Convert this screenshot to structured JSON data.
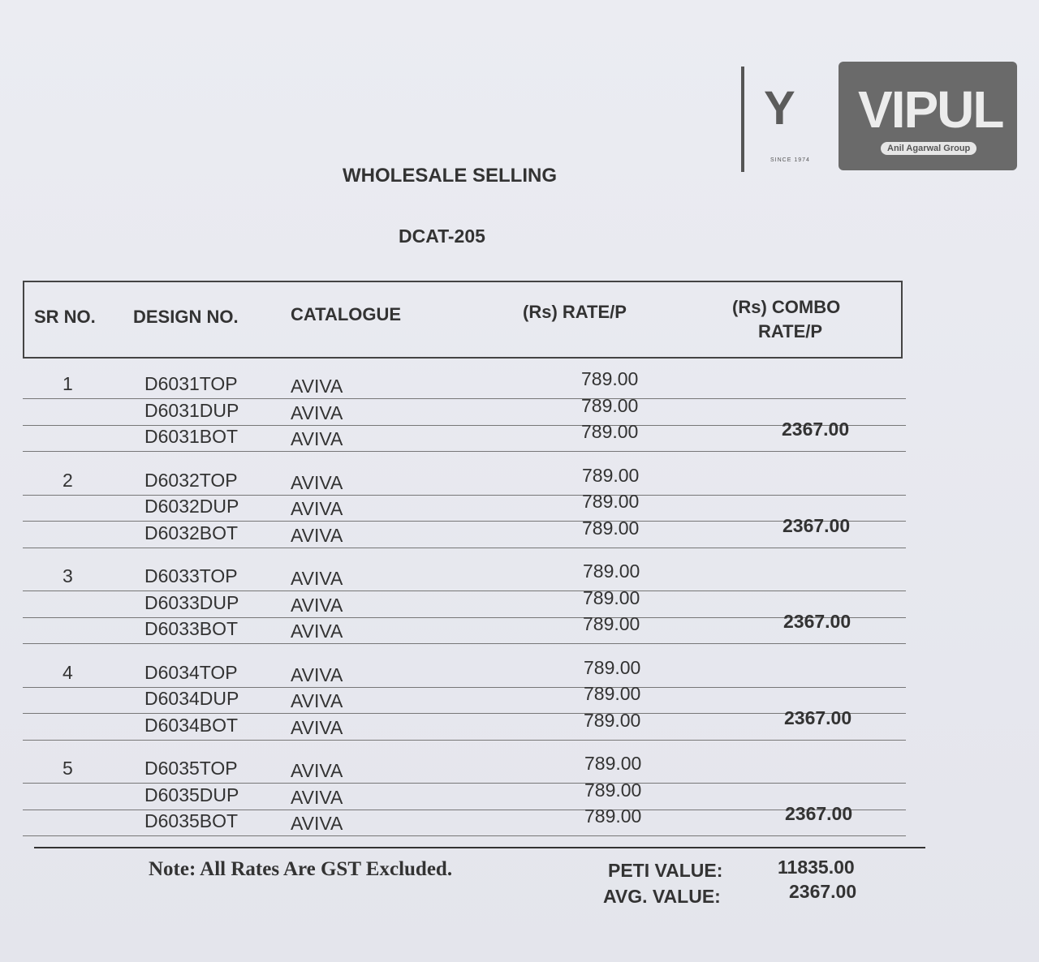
{
  "logo": {
    "since": "SINCE 1974",
    "brand": "VIPUL",
    "group": "Anil Agarwal Group",
    "emblem": "Y"
  },
  "title": "WHOLESALE SELLING",
  "catalog_code": "DCAT-205",
  "headers": {
    "sr": "SR NO.",
    "design": "DESIGN NO.",
    "catalogue": "CATALOGUE",
    "rate": "(Rs) RATE/P",
    "combo_1": "(Rs) COMBO",
    "combo_2": "RATE/P"
  },
  "groups": [
    {
      "sr": "1",
      "combo": "2367.00",
      "items": [
        {
          "design": "D6031TOP",
          "catalogue": "AVIVA",
          "rate": "789.00"
        },
        {
          "design": "D6031DUP",
          "catalogue": "AVIVA",
          "rate": "789.00"
        },
        {
          "design": "D6031BOT",
          "catalogue": "AVIVA",
          "rate": "789.00"
        }
      ]
    },
    {
      "sr": "2",
      "combo": "2367.00",
      "items": [
        {
          "design": "D6032TOP",
          "catalogue": "AVIVA",
          "rate": "789.00"
        },
        {
          "design": "D6032DUP",
          "catalogue": "AVIVA",
          "rate": "789.00"
        },
        {
          "design": "D6032BOT",
          "catalogue": "AVIVA",
          "rate": "789.00"
        }
      ]
    },
    {
      "sr": "3",
      "combo": "2367.00",
      "items": [
        {
          "design": "D6033TOP",
          "catalogue": "AVIVA",
          "rate": "789.00"
        },
        {
          "design": "D6033DUP",
          "catalogue": "AVIVA",
          "rate": "789.00"
        },
        {
          "design": "D6033BOT",
          "catalogue": "AVIVA",
          "rate": "789.00"
        }
      ]
    },
    {
      "sr": "4",
      "combo": "2367.00",
      "items": [
        {
          "design": "D6034TOP",
          "catalogue": "AVIVA",
          "rate": "789.00"
        },
        {
          "design": "D6034DUP",
          "catalogue": "AVIVA",
          "rate": "789.00"
        },
        {
          "design": "D6034BOT",
          "catalogue": "AVIVA",
          "rate": "789.00"
        }
      ]
    },
    {
      "sr": "5",
      "combo": "2367.00",
      "items": [
        {
          "design": "D6035TOP",
          "catalogue": "AVIVA",
          "rate": "789.00"
        },
        {
          "design": "D6035DUP",
          "catalogue": "AVIVA",
          "rate": "789.00"
        },
        {
          "design": "D6035BOT",
          "catalogue": "AVIVA",
          "rate": "789.00"
        }
      ]
    }
  ],
  "note": "Note: All Rates Are GST Excluded.",
  "summary": {
    "peti_label": "PETI VALUE:",
    "peti_value": "11835.00",
    "avg_label": "AVG. VALUE:",
    "avg_value": "2367.00"
  }
}
